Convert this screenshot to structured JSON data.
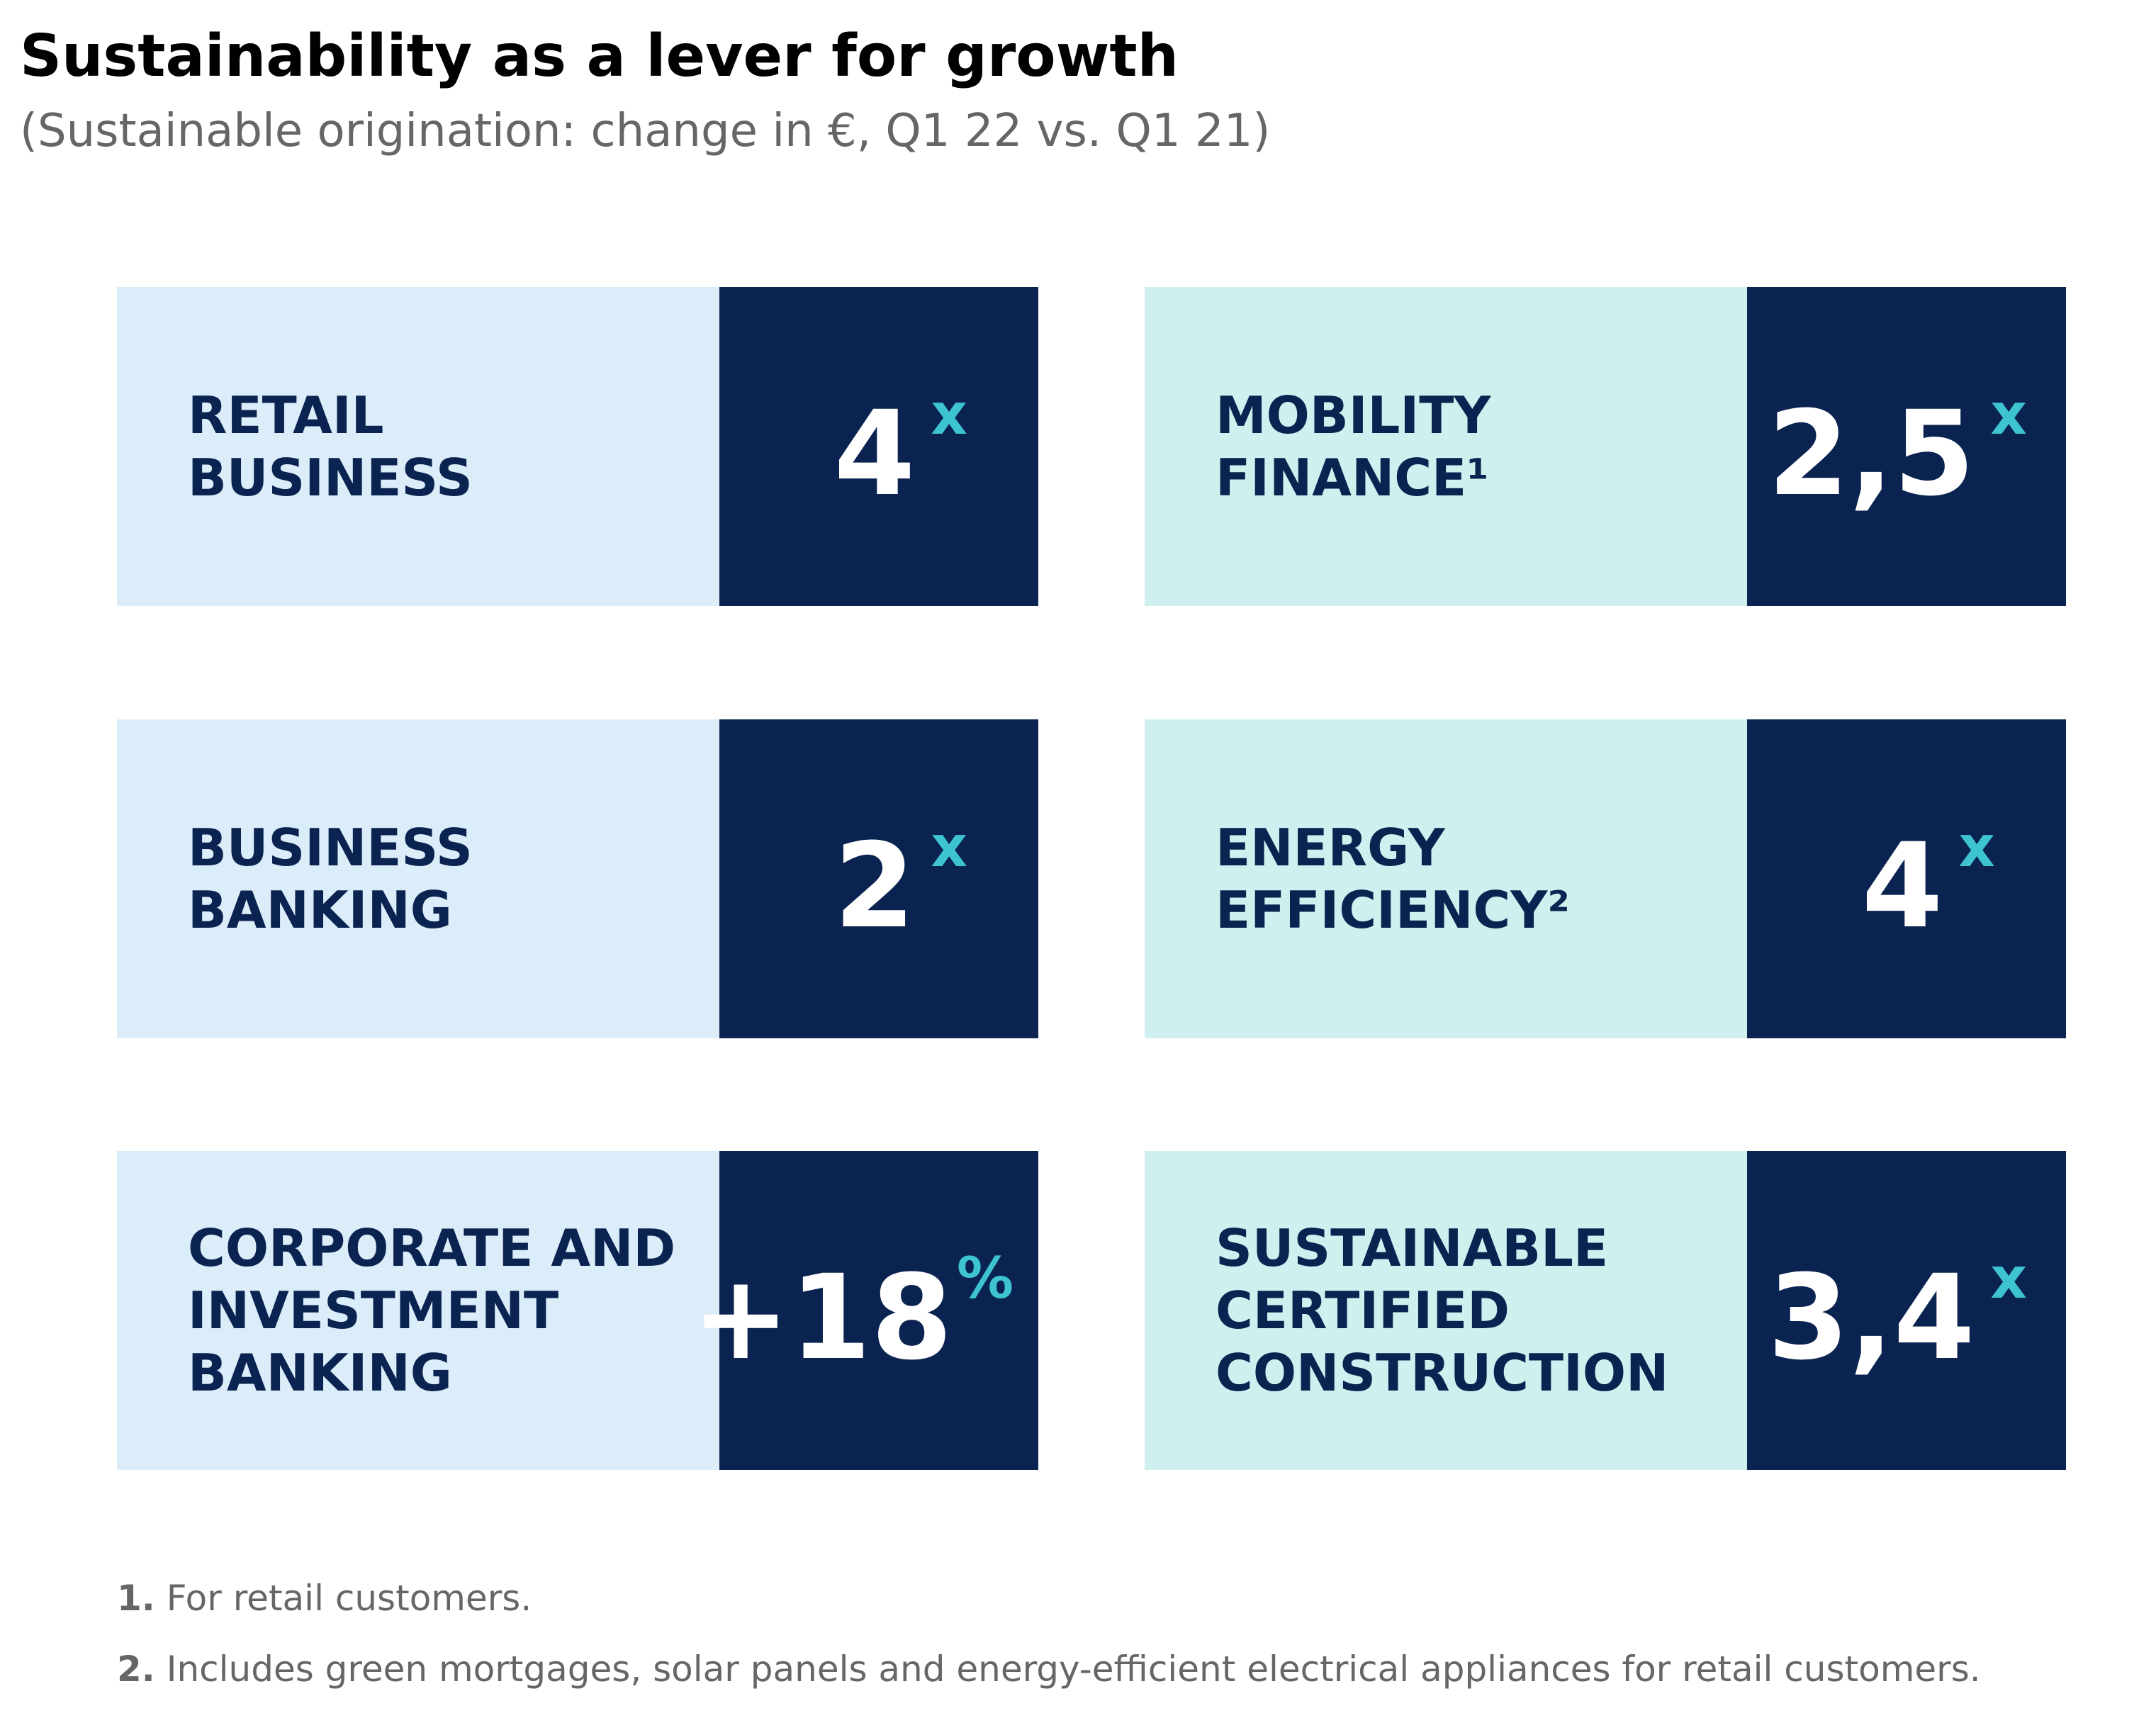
{
  "title": "Sustainability as a lever for growth",
  "subtitle": "(Sustainable origination: change in €, Q1 22 vs. Q1 21)",
  "colors": {
    "navy": "#0b2350",
    "light_blue": "#dcedfa",
    "light_teal": "#d0f0ef",
    "accent_teal": "#3ec4cf",
    "grey_text": "#666666"
  },
  "cards": [
    {
      "label": "RETAIL\nBUSINESS",
      "value": "4",
      "unit": "x"
    },
    {
      "label": "MOBILITY\nFINANCE¹",
      "value": "2,5",
      "unit": "x"
    },
    {
      "label": "BUSINESS\nBANKING",
      "value": "2",
      "unit": "x"
    },
    {
      "label": "ENERGY\nEFFICIENCY²",
      "value": "4",
      "unit": "x"
    },
    {
      "label": "CORPORATE AND\nINVESTMENT\nBANKING",
      "value": "+18",
      "unit": "%"
    },
    {
      "label": "SUSTAINABLE\nCERTIFIED\nCONSTRUCTION",
      "value": "3,4",
      "unit": "x"
    }
  ],
  "footnotes": [
    {
      "num": "1.",
      "text": "For retail customers."
    },
    {
      "num": "2.",
      "text": "Includes green mortgages, solar panels and energy-efficient electrical appliances for retail customers."
    }
  ]
}
